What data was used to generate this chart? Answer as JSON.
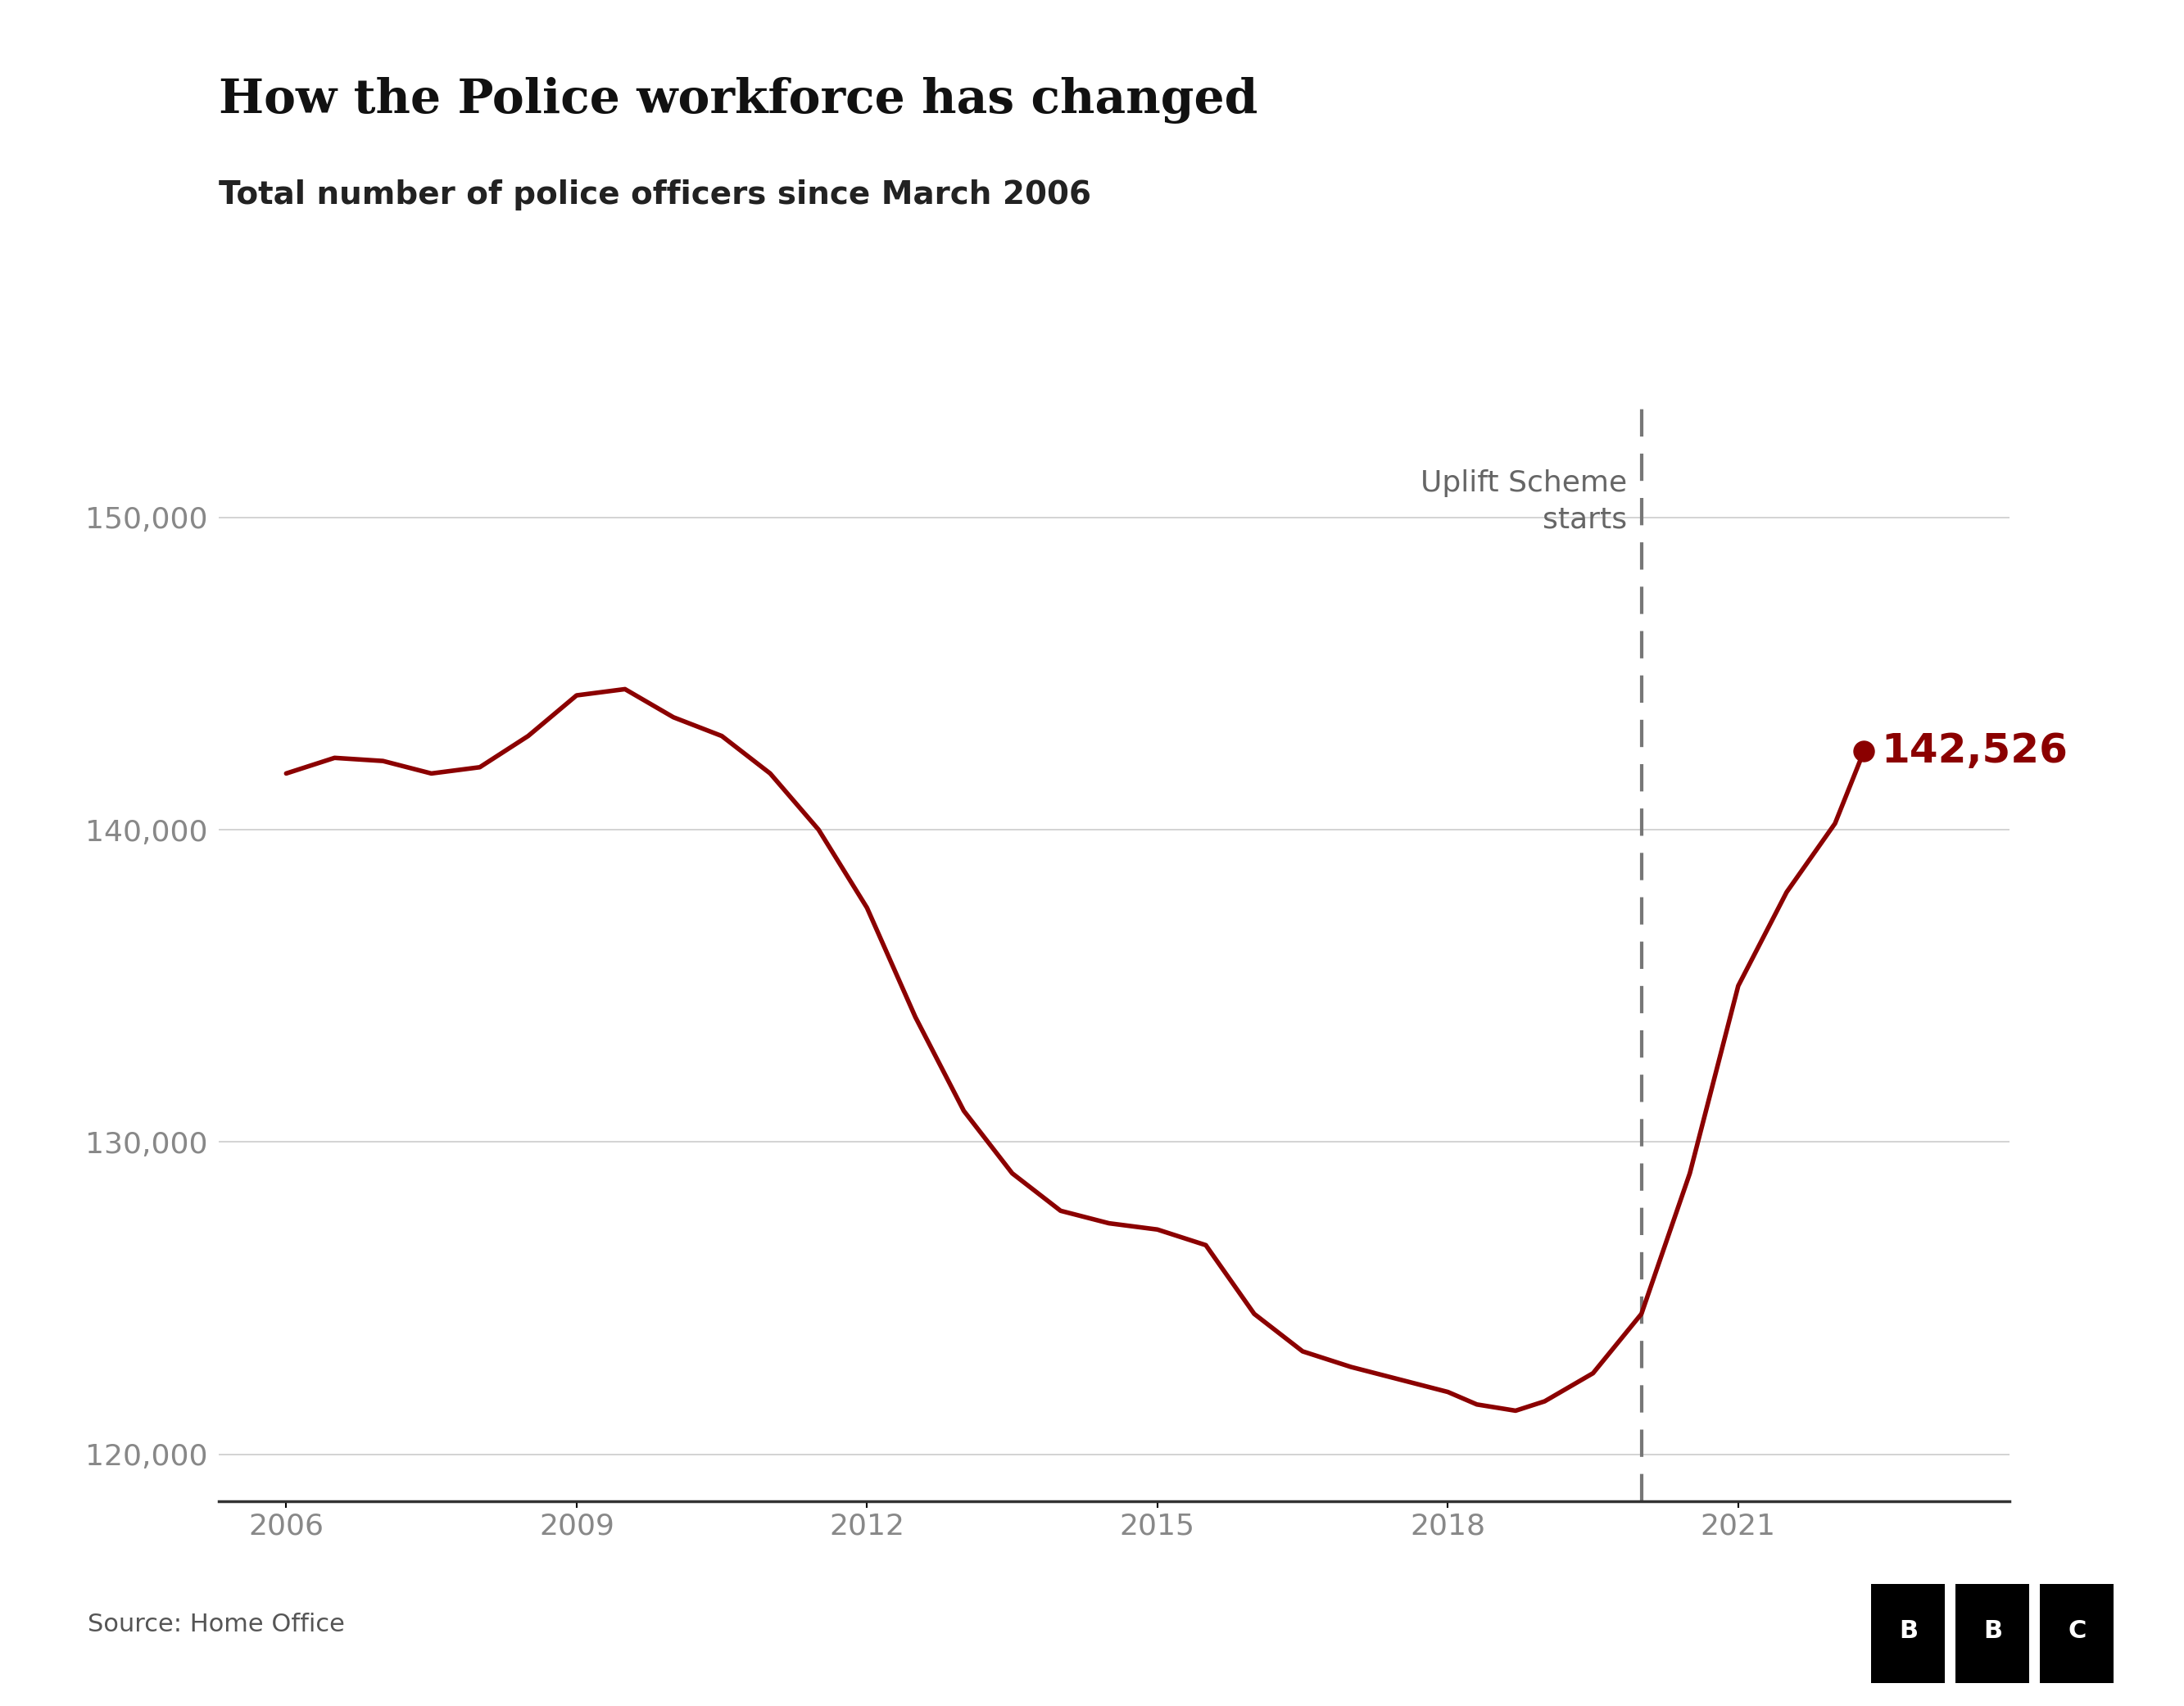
{
  "title": "How the Police workforce has changed",
  "subtitle": "Total number of police officers since March 2006",
  "source": "Source: Home Office",
  "line_color": "#8B0000",
  "dashed_line_color": "#777777",
  "uplift_x": 2020.0,
  "uplift_label": "Uplift Scheme\nstarts",
  "last_value": 142526,
  "last_year": 2022.3,
  "yticks": [
    120000,
    130000,
    140000,
    150000
  ],
  "xticks": [
    2006,
    2009,
    2012,
    2015,
    2018,
    2021
  ],
  "ylim": [
    118500,
    154000
  ],
  "xlim": [
    2005.3,
    2023.8
  ],
  "years": [
    2006,
    2006.5,
    2007,
    2007.5,
    2008,
    2008.5,
    2009,
    2009.5,
    2010,
    2010.5,
    2011,
    2011.5,
    2012,
    2012.5,
    2013,
    2013.5,
    2014,
    2014.5,
    2015,
    2015.5,
    2016,
    2016.5,
    2017,
    2017.5,
    2018,
    2018.3,
    2018.7,
    2019,
    2019.5,
    2020.0,
    2020.5,
    2021.0,
    2021.5,
    2022.0,
    2022.3
  ],
  "values": [
    141800,
    142300,
    142200,
    141800,
    142000,
    143000,
    144300,
    144500,
    143600,
    143000,
    141800,
    140000,
    137500,
    134000,
    131000,
    129000,
    127800,
    127400,
    127200,
    126700,
    124500,
    123300,
    122800,
    122400,
    122000,
    121600,
    121400,
    121700,
    122600,
    124500,
    129000,
    135000,
    138000,
    140200,
    142526
  ],
  "background_color": "#ffffff",
  "title_fontsize": 42,
  "subtitle_fontsize": 28,
  "tick_fontsize": 26,
  "annotation_fontsize": 26,
  "source_fontsize": 22,
  "value_label_fontsize": 36
}
